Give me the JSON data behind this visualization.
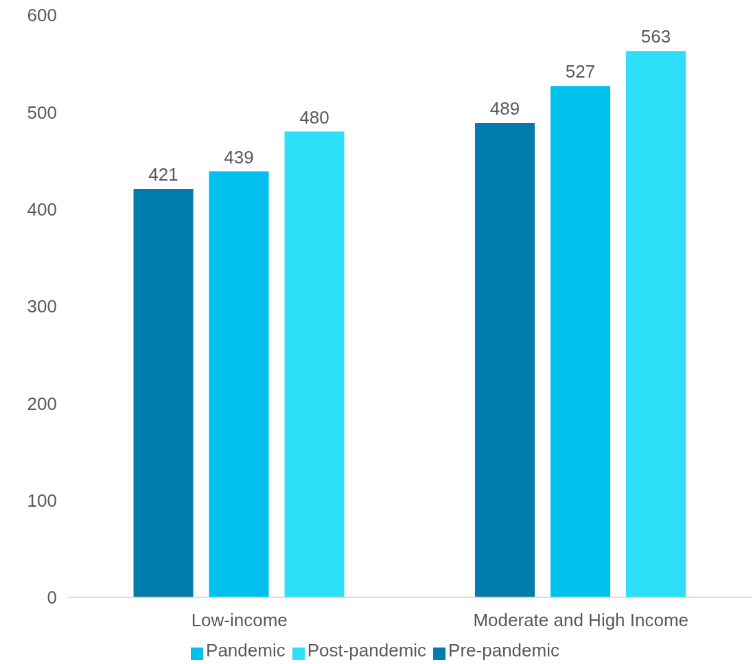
{
  "chart_data": {
    "type": "bar",
    "categories": [
      "Low-income",
      "Moderate and High Income"
    ],
    "series": [
      {
        "name": "Pre-pandemic",
        "color": "#027cab",
        "values": [
          421,
          489
        ]
      },
      {
        "name": "Pandemic",
        "color": "#00c0ec",
        "values": [
          439,
          527
        ]
      },
      {
        "name": "Post-pandemic",
        "color": "#2ddff9",
        "values": [
          480,
          563
        ]
      }
    ],
    "ylim": [
      0,
      600
    ],
    "yticks": [
      0,
      100,
      200,
      300,
      400,
      500,
      600
    ],
    "grid": false,
    "legend": "bottom",
    "data_labels": true
  }
}
